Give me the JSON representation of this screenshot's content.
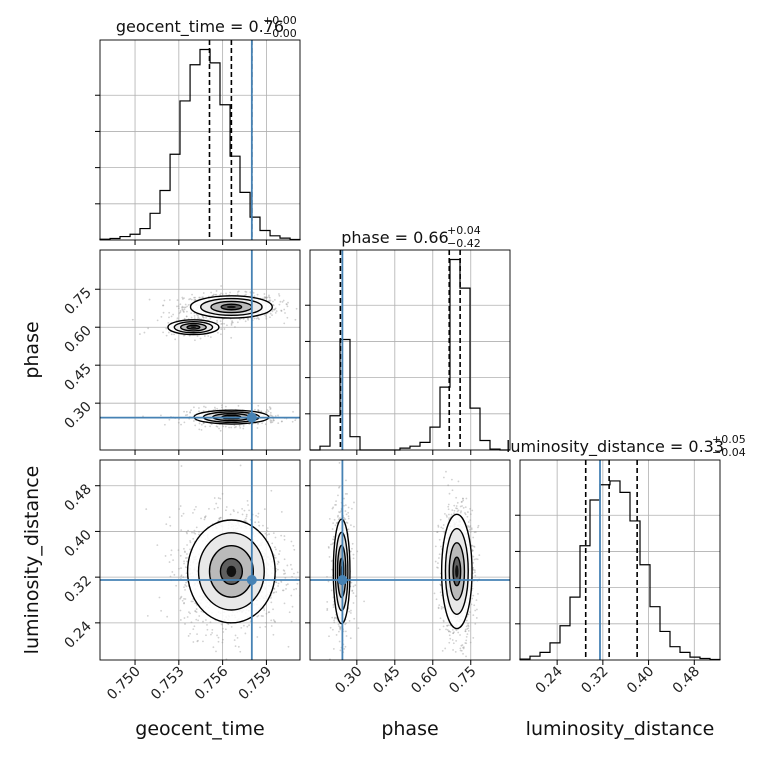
{
  "chart_data": {
    "type": "corner",
    "parameters": [
      "geocent_time",
      "phase",
      "luminosity_distance"
    ],
    "ranges": {
      "geocent_time": [
        0.7476,
        0.7613
      ],
      "phase": [
        0.115,
        0.905
      ],
      "luminosity_distance": [
        0.175,
        0.525
      ]
    },
    "truths": {
      "geocent_time": 0.758,
      "phase": 0.243,
      "luminosity_distance": 0.315
    },
    "grid": true,
    "colors": {
      "truth": "#4682b4",
      "hist": "#000000",
      "quantile": "#000000",
      "scatter": "#9a9a9a"
    },
    "titles": {
      "geocent_time": {
        "name": "geocent_time",
        "value": "0.76",
        "plus": "+0.00",
        "minus": "−0.00"
      },
      "phase": {
        "name": "phase",
        "value": "0.66",
        "plus": "+0.04",
        "minus": "−0.42"
      },
      "luminosity_distance": {
        "name": "luminosity_distance",
        "value": "0.33",
        "plus": "+0.05",
        "minus": "−0.04"
      }
    },
    "ticks": {
      "geocent_time": [
        "0.750",
        "0.753",
        "0.756",
        "0.759"
      ],
      "phase": [
        "0.30",
        "0.45",
        "0.60",
        "0.75"
      ],
      "luminosity_distance": [
        "0.24",
        "0.32",
        "0.40",
        "0.48"
      ]
    },
    "tick_values": {
      "geocent_time": [
        0.75,
        0.753,
        0.756,
        0.759
      ],
      "phase": [
        0.3,
        0.45,
        0.6,
        0.75
      ],
      "luminosity_distance": [
        0.24,
        0.32,
        0.4,
        0.48
      ]
    },
    "diag_hist": {
      "geocent_time": {
        "edges": [
          0.7476,
          0.74829,
          0.74897,
          0.74966,
          0.75034,
          0.75103,
          0.75171,
          0.7524,
          0.75308,
          0.75377,
          0.75445,
          0.75514,
          0.75582,
          0.75651,
          0.75719,
          0.75788,
          0.75856,
          0.75925,
          0.75993,
          0.76062,
          0.7613
        ],
        "counts": [
          0.004,
          0.008,
          0.018,
          0.03,
          0.06,
          0.14,
          0.26,
          0.45,
          0.73,
          0.92,
          1.0,
          0.93,
          0.71,
          0.44,
          0.25,
          0.12,
          0.05,
          0.022,
          0.01,
          0.003
        ],
        "quantiles": [
          0.7551,
          0.7566,
          0.758
        ]
      },
      "phase": {
        "edges": [
          0.115,
          0.1545,
          0.194,
          0.2335,
          0.273,
          0.3125,
          0.352,
          0.3915,
          0.431,
          0.4705,
          0.51,
          0.5495,
          0.589,
          0.6285,
          0.668,
          0.7075,
          0.747,
          0.7865,
          0.826,
          0.8655,
          0.905
        ],
        "counts": [
          0.0,
          0.02,
          0.18,
          0.58,
          0.07,
          0.0,
          0.0,
          0.0,
          0.0,
          0.01,
          0.02,
          0.04,
          0.12,
          0.33,
          1.0,
          0.85,
          0.22,
          0.05,
          0.005,
          0.0
        ],
        "quantiles": [
          0.235,
          0.665,
          0.708
        ]
      },
      "luminosity_distance": {
        "edges": [
          0.175,
          0.1925,
          0.21,
          0.2275,
          0.245,
          0.2625,
          0.28,
          0.2975,
          0.315,
          0.3325,
          0.35,
          0.3675,
          0.385,
          0.4025,
          0.42,
          0.4375,
          0.455,
          0.4725,
          0.49,
          0.5075,
          0.525
        ],
        "counts": [
          0.005,
          0.02,
          0.04,
          0.09,
          0.18,
          0.33,
          0.6,
          0.84,
          0.92,
          0.94,
          0.88,
          0.73,
          0.5,
          0.28,
          0.15,
          0.07,
          0.04,
          0.015,
          0.008,
          0.003
        ],
        "quantiles": [
          0.29,
          0.331,
          0.38
        ]
      }
    },
    "blobs": [
      {
        "x": "geocent_time",
        "y": "phase",
        "mx": 0.7566,
        "my": 0.68,
        "sx": 0.0014,
        "sy": 0.022,
        "w": 1.0,
        "n": 900
      },
      {
        "x": "geocent_time",
        "y": "phase",
        "mx": 0.7566,
        "my": 0.245,
        "sx": 0.0014,
        "sy": 0.015,
        "w": 0.55,
        "n": 450
      },
      {
        "x": "geocent_time",
        "y": "phase",
        "mx": 0.754,
        "my": 0.6,
        "sx": 0.0012,
        "sy": 0.02,
        "w": 0.12,
        "n": 90
      },
      {
        "x": "geocent_time",
        "y": "luminosity_distance",
        "mx": 0.7566,
        "my": 0.33,
        "sx": 0.0015,
        "sy": 0.045,
        "w": 1.0,
        "n": 1400
      },
      {
        "x": "phase",
        "y": "luminosity_distance",
        "mx": 0.24,
        "my": 0.33,
        "sx": 0.018,
        "sy": 0.05,
        "w": 0.55,
        "n": 550
      },
      {
        "x": "phase",
        "y": "luminosity_distance",
        "mx": 0.695,
        "my": 0.33,
        "sx": 0.03,
        "sy": 0.05,
        "w": 1.0,
        "n": 900
      }
    ]
  }
}
